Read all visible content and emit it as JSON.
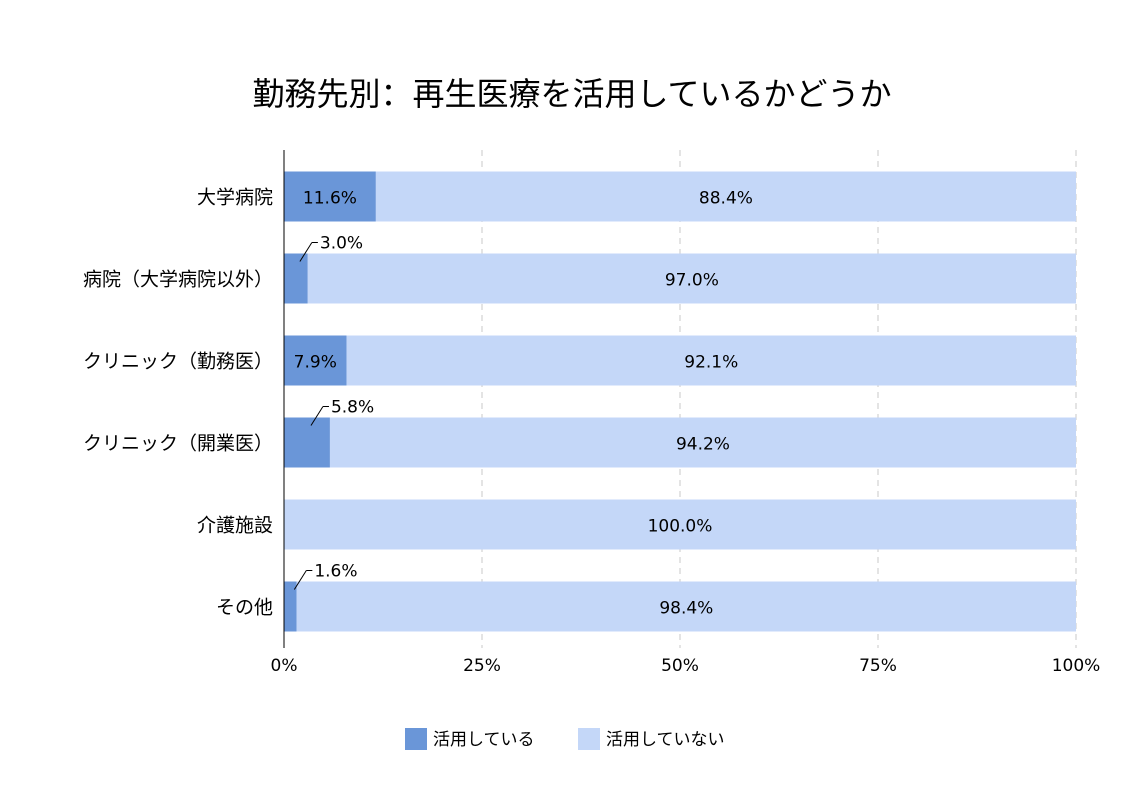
{
  "chart_data": {
    "type": "bar",
    "orientation": "horizontal",
    "stacked": "percent",
    "title": "勤務先別：再生医療を活用しているかどうか",
    "xlabel": "",
    "ylabel": "",
    "xlim": [
      0,
      100
    ],
    "x_ticks": [
      "0%",
      "25%",
      "50%",
      "75%",
      "100%"
    ],
    "grid": "vertical dashed",
    "legend_position": "bottom",
    "categories": [
      "大学病院",
      "病院（大学病院以外）",
      "クリニック（勤務医）",
      "クリニック（開業医）",
      "介護施設",
      "その他"
    ],
    "series": [
      {
        "name": "活用している",
        "color": "#6a96d8",
        "values": [
          11.6,
          3.0,
          7.9,
          5.8,
          0.0,
          1.6
        ],
        "labels": [
          "11.6%",
          "3.0%",
          "7.9%",
          "5.8%",
          "",
          "1.6%"
        ]
      },
      {
        "name": "活用していない",
        "color": "#c4d7f8",
        "values": [
          88.4,
          97.0,
          92.1,
          94.2,
          100.0,
          98.4
        ],
        "labels": [
          "88.4%",
          "97.0%",
          "92.1%",
          "94.2%",
          "100.0%",
          "98.4%"
        ]
      }
    ]
  }
}
